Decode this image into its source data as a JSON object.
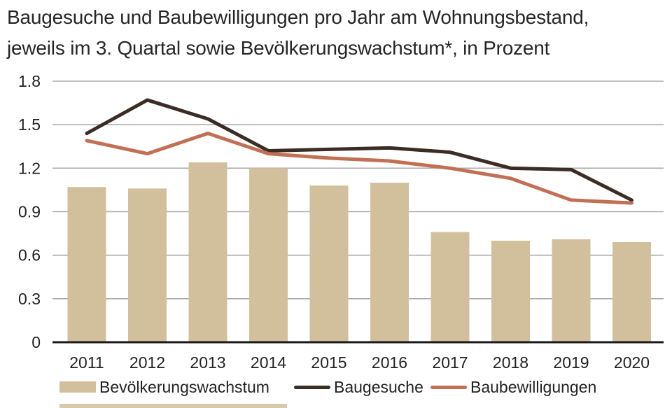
{
  "title": {
    "line1": "Baugesuche und Baubewilligungen pro Jahr am Wohnungsbestand,",
    "line2": "jeweils im 3. Quartal sowie Bevölkerungswachstum*, in Prozent"
  },
  "legend": [
    {
      "label": "Bevölkerungswachstum",
      "swatch": "bar",
      "color": "#D2C09D"
    },
    {
      "label": "Baugesuche",
      "swatch": "line",
      "color": "#3B2D25"
    },
    {
      "label": "Baubewilligungen",
      "swatch": "line",
      "color": "#C27053"
    }
  ],
  "chart_data": {
    "type": "bar+line combo",
    "categories": [
      "2011",
      "2012",
      "2013",
      "2014",
      "2015",
      "2016",
      "2017",
      "2018",
      "2019",
      "2020"
    ],
    "series": [
      {
        "name": "Bevölkerungswachstum",
        "type": "bar",
        "color": "#D2C09D",
        "values": [
          1.07,
          1.06,
          1.24,
          1.2,
          1.08,
          1.1,
          0.76,
          0.7,
          0.71,
          0.69
        ]
      },
      {
        "name": "Baugesuche",
        "type": "line",
        "color": "#3B2D25",
        "values": [
          1.44,
          1.67,
          1.54,
          1.32,
          1.33,
          1.34,
          1.31,
          1.2,
          1.19,
          0.98
        ]
      },
      {
        "name": "Baubewilligungen",
        "type": "line",
        "color": "#C27053",
        "values": [
          1.39,
          1.3,
          1.44,
          1.3,
          1.27,
          1.25,
          1.2,
          1.13,
          0.98,
          0.96
        ]
      }
    ],
    "title": "Baugesuche und Baubewilligungen pro Jahr am Wohnungsbestand, jeweils im 3. Quartal sowie Bevölkerungswachstum*, in Prozent",
    "xlabel": "",
    "ylabel": "",
    "ylim": [
      0,
      1.8
    ],
    "yticks": [
      0,
      0.3,
      0.6,
      0.9,
      1.2,
      1.5,
      1.8
    ],
    "ytick_labels": [
      "0",
      "0.3",
      "0.6",
      "0.9",
      "1.2",
      "1.5",
      "1.8"
    ],
    "grid": true,
    "legend_position": "bottom"
  },
  "colors": {
    "grid": "#ABABAB",
    "axis": "#1A1A1A",
    "text": "#222222",
    "background": "#FFFFFF",
    "bottom_strip": "#D8C9AC"
  }
}
